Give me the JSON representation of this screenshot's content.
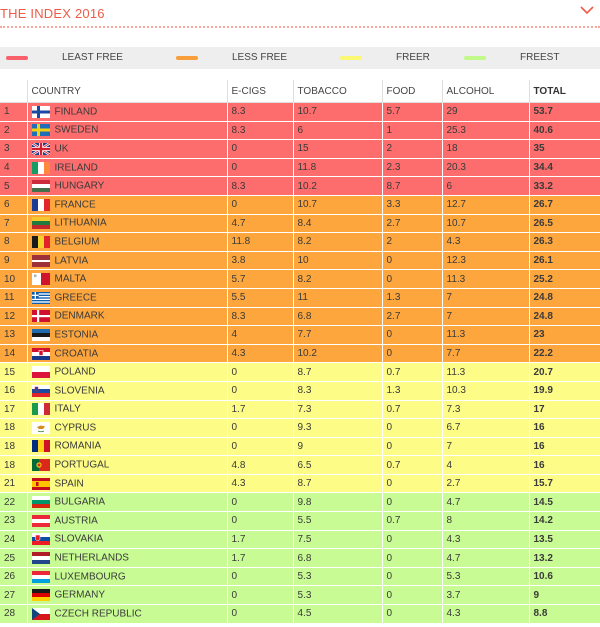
{
  "header": {
    "title": "THE INDEX 2016",
    "toggle_icon": "chevron-down-icon"
  },
  "legend": [
    {
      "label": "LEAST FREE",
      "color": "#f8616a"
    },
    {
      "label": "LESS FREE",
      "color": "#f89f3b"
    },
    {
      "label": "FREER",
      "color": "#fbf971"
    },
    {
      "label": "FREEST",
      "color": "#c1fa88"
    }
  ],
  "chart_data": {
    "type": "table",
    "title": "THE INDEX 2016",
    "columns": [
      "",
      "COUNTRY",
      "E-CIGS",
      "TOBACCO",
      "FOOD",
      "ALCOHOL",
      "TOTAL"
    ],
    "rows": [
      {
        "rank": "1",
        "country": "FINLAND",
        "flag": "finland-flag-icon",
        "ecigs": "8.3",
        "tobacco": "10.7",
        "food": "5.7",
        "alcohol": "29",
        "total": "53.7",
        "tier": "least"
      },
      {
        "rank": "2",
        "country": "SWEDEN",
        "flag": "sweden-flag-icon",
        "ecigs": "8.3",
        "tobacco": "6",
        "food": "1",
        "alcohol": "25.3",
        "total": "40.6",
        "tier": "least"
      },
      {
        "rank": "3",
        "country": "UK",
        "flag": "uk-flag-icon",
        "ecigs": "0",
        "tobacco": "15",
        "food": "2",
        "alcohol": "18",
        "total": "35",
        "tier": "least"
      },
      {
        "rank": "4",
        "country": "IRELAND",
        "flag": "ireland-flag-icon",
        "ecigs": "0",
        "tobacco": "11.8",
        "food": "2.3",
        "alcohol": "20.3",
        "total": "34.4",
        "tier": "least"
      },
      {
        "rank": "5",
        "country": "HUNGARY",
        "flag": "hungary-flag-icon",
        "ecigs": "8.3",
        "tobacco": "10.2",
        "food": "8.7",
        "alcohol": "6",
        "total": "33.2",
        "tier": "least"
      },
      {
        "rank": "6",
        "country": "FRANCE",
        "flag": "france-flag-icon",
        "ecigs": "0",
        "tobacco": "10.7",
        "food": "3.3",
        "alcohol": "12.7",
        "total": "26.7",
        "tier": "less"
      },
      {
        "rank": "7",
        "country": "LITHUANIA",
        "flag": "lithuania-flag-icon",
        "ecigs": "4.7",
        "tobacco": "8.4",
        "food": "2.7",
        "alcohol": "10.7",
        "total": "26.5",
        "tier": "less"
      },
      {
        "rank": "8",
        "country": "BELGIUM",
        "flag": "belgium-flag-icon",
        "ecigs": "11.8",
        "tobacco": "8.2",
        "food": "2",
        "alcohol": "4.3",
        "total": "26.3",
        "tier": "less"
      },
      {
        "rank": "9",
        "country": "LATVIA",
        "flag": "latvia-flag-icon",
        "ecigs": "3.8",
        "tobacco": "10",
        "food": "0",
        "alcohol": "12.3",
        "total": "26.1",
        "tier": "less"
      },
      {
        "rank": "10",
        "country": "MALTA",
        "flag": "malta-flag-icon",
        "ecigs": "5.7",
        "tobacco": "8.2",
        "food": "0",
        "alcohol": "11.3",
        "total": "25.2",
        "tier": "less"
      },
      {
        "rank": "11",
        "country": "GREECE",
        "flag": "greece-flag-icon",
        "ecigs": "5.5",
        "tobacco": "11",
        "food": "1.3",
        "alcohol": "7",
        "total": "24.8",
        "tier": "less"
      },
      {
        "rank": "12",
        "country": "DENMARK",
        "flag": "denmark-flag-icon",
        "ecigs": "8.3",
        "tobacco": "6.8",
        "food": "2.7",
        "alcohol": "7",
        "total": "24.8",
        "tier": "less"
      },
      {
        "rank": "13",
        "country": "ESTONIA",
        "flag": "estonia-flag-icon",
        "ecigs": "4",
        "tobacco": "7.7",
        "food": "0",
        "alcohol": "11.3",
        "total": "23",
        "tier": "less"
      },
      {
        "rank": "14",
        "country": "CROATIA",
        "flag": "croatia-flag-icon",
        "ecigs": "4.3",
        "tobacco": "10.2",
        "food": "0",
        "alcohol": "7.7",
        "total": "22.2",
        "tier": "less"
      },
      {
        "rank": "15",
        "country": "POLAND",
        "flag": "poland-flag-icon",
        "ecigs": "0",
        "tobacco": "8.7",
        "food": "0.7",
        "alcohol": "11.3",
        "total": "20.7",
        "tier": "freer"
      },
      {
        "rank": "16",
        "country": "SLOVENIA",
        "flag": "slovenia-flag-icon",
        "ecigs": "0",
        "tobacco": "8.3",
        "food": "1.3",
        "alcohol": "10.3",
        "total": "19.9",
        "tier": "freer"
      },
      {
        "rank": "17",
        "country": "ITALY",
        "flag": "italy-flag-icon",
        "ecigs": "1.7",
        "tobacco": "7.3",
        "food": "0.7",
        "alcohol": "7.3",
        "total": "17",
        "tier": "freer"
      },
      {
        "rank": "18",
        "country": "CYPRUS",
        "flag": "cyprus-flag-icon",
        "ecigs": "0",
        "tobacco": "9.3",
        "food": "0",
        "alcohol": "6.7",
        "total": "16",
        "tier": "freer"
      },
      {
        "rank": "18",
        "country": "ROMANIA",
        "flag": "romania-flag-icon",
        "ecigs": "0",
        "tobacco": "9",
        "food": "0",
        "alcohol": "7",
        "total": "16",
        "tier": "freer"
      },
      {
        "rank": "18",
        "country": "PORTUGAL",
        "flag": "portugal-flag-icon",
        "ecigs": "4.8",
        "tobacco": "6.5",
        "food": "0.7",
        "alcohol": "4",
        "total": "16",
        "tier": "freer"
      },
      {
        "rank": "21",
        "country": "SPAIN",
        "flag": "spain-flag-icon",
        "ecigs": "4.3",
        "tobacco": "8.7",
        "food": "0",
        "alcohol": "2.7",
        "total": "15.7",
        "tier": "freer"
      },
      {
        "rank": "22",
        "country": "BULGARIA",
        "flag": "bulgaria-flag-icon",
        "ecigs": "0",
        "tobacco": "9.8",
        "food": "0",
        "alcohol": "4.7",
        "total": "14.5",
        "tier": "freest"
      },
      {
        "rank": "23",
        "country": "AUSTRIA",
        "flag": "austria-flag-icon",
        "ecigs": "0",
        "tobacco": "5.5",
        "food": "0.7",
        "alcohol": "8",
        "total": "14.2",
        "tier": "freest"
      },
      {
        "rank": "24",
        "country": "SLOVAKIA",
        "flag": "slovakia-flag-icon",
        "ecigs": "1.7",
        "tobacco": "7.5",
        "food": "0",
        "alcohol": "4.3",
        "total": "13.5",
        "tier": "freest"
      },
      {
        "rank": "25",
        "country": "NETHERLANDS",
        "flag": "netherlands-flag-icon",
        "ecigs": "1.7",
        "tobacco": "6.8",
        "food": "0",
        "alcohol": "4.7",
        "total": "13.2",
        "tier": "freest"
      },
      {
        "rank": "26",
        "country": "LUXEMBOURG",
        "flag": "luxembourg-flag-icon",
        "ecigs": "0",
        "tobacco": "5.3",
        "food": "0",
        "alcohol": "5.3",
        "total": "10.6",
        "tier": "freest"
      },
      {
        "rank": "27",
        "country": "GERMANY",
        "flag": "germany-flag-icon",
        "ecigs": "0",
        "tobacco": "5.3",
        "food": "0",
        "alcohol": "3.7",
        "total": "9",
        "tier": "freest"
      },
      {
        "rank": "28",
        "country": "CZECH REPUBLIC",
        "flag": "czech-republic-flag-icon",
        "ecigs": "0",
        "tobacco": "4.5",
        "food": "0",
        "alcohol": "4.3",
        "total": "8.8",
        "tier": "freest"
      }
    ],
    "tier_colors": {
      "least": "#fd6d6d",
      "less": "#fda63e",
      "freer": "#fdfc86",
      "freest": "#c8fb93"
    }
  }
}
